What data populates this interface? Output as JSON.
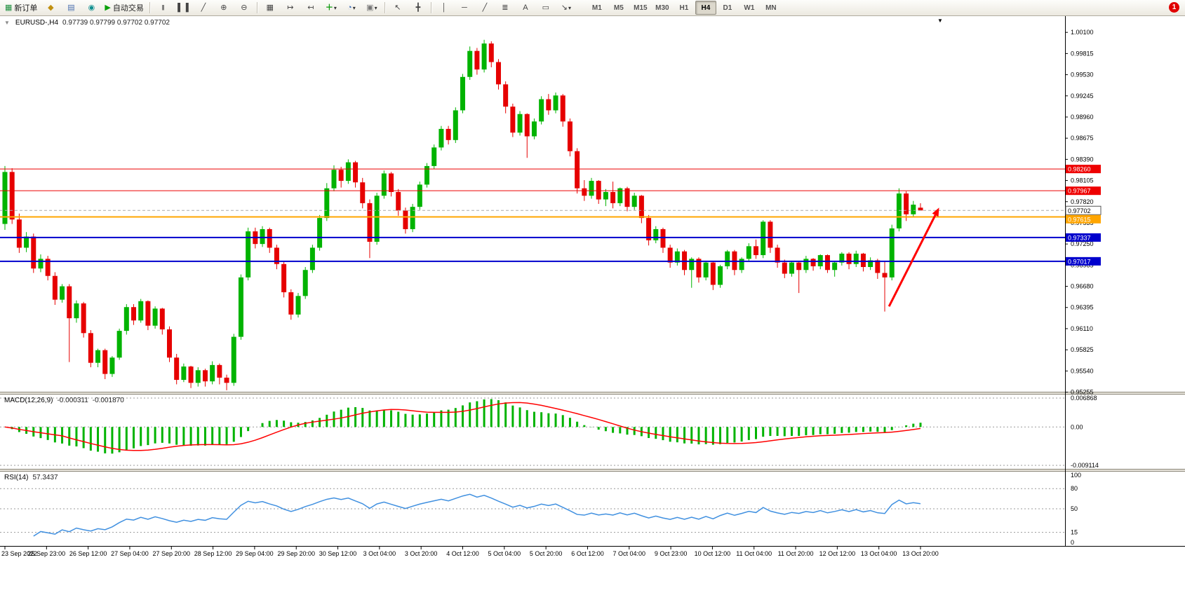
{
  "window": {
    "notification_count": "1"
  },
  "toolbar": {
    "new_order_label": "新订单",
    "autotrading_label": "自动交易",
    "timeframes": [
      "M1",
      "M5",
      "M15",
      "M30",
      "H1",
      "H4",
      "D1",
      "W1",
      "MN"
    ],
    "active_timeframe": "H4",
    "glyphs": {
      "new_order": "▦",
      "mql_editor": "◆",
      "terminal": "▤",
      "strategy_tester": "◉",
      "autotrading": "▶",
      "bars_chart": "|||",
      "candle_chart": "▌▐",
      "line_chart": "╱",
      "zoom_in": "⊕",
      "zoom_out": "⊖",
      "tile_windows": "▦",
      "auto_scroll": "↦",
      "chart_shift": "↤",
      "indicators": "＋",
      "periods": "◔",
      "templates": "▣",
      "cursor": "↖",
      "crosshair": "╋",
      "vertical_line": "│",
      "horizontal_line": "─",
      "trend_line": "╱",
      "fibonacci": "≣",
      "text_tool": "A",
      "label_tool": "▭",
      "arrows_tool": "↘",
      "dropdown": "▾",
      "collapse": "▼",
      "chart_marker": "▼"
    }
  },
  "chart": {
    "title": "EURUSD-,H4",
    "ohlc_text": "0.97739 0.97799 0.97702 0.97702"
  },
  "macd": {
    "name": "MACD(12,26,9)",
    "value": "-0.000311",
    "signal": "-0.001870",
    "axis_labels": [
      "0.006868",
      "0.00",
      "-0.009114"
    ],
    "axis_values": [
      0.006868,
      0,
      -0.009114
    ],
    "fast": 12,
    "slow": 26,
    "smooth": 9,
    "histogram_color": "#00B300",
    "signal_color": "#FF0000"
  },
  "rsi": {
    "name": "RSI(14)",
    "value": "57.3437",
    "period": 14,
    "levels": [
      80,
      50,
      15
    ],
    "axis_labels": [
      "100",
      "80",
      "50",
      "15",
      "0"
    ],
    "axis_values": [
      100,
      80,
      50,
      15,
      0
    ],
    "line_color": "#4090E0"
  },
  "chart_data": {
    "type": "candlestick",
    "symbol": "EURUSD-",
    "timeframe": "H4",
    "current_bar": {
      "open": 0.97739,
      "high": 0.97799,
      "low": 0.97702,
      "close": 0.97702
    },
    "ylim": [
      0.9526,
      1.003
    ],
    "up_color": "#00B300",
    "down_color": "#E60000",
    "price_ticks": [
      "1.00100",
      "0.99815",
      "0.99530",
      "0.99245",
      "0.98960",
      "0.98675",
      "0.98390",
      "0.98105",
      "0.97820",
      "0.97535",
      "0.97250",
      "0.96965",
      "0.96680",
      "0.96395",
      "0.96110",
      "0.95825",
      "0.95540",
      "0.95255"
    ],
    "time_labels": [
      "23 Sep 2022",
      "25 Sep 23:00",
      "26 Sep 12:00",
      "27 Sep 04:00",
      "27 Sep 20:00",
      "28 Sep 12:00",
      "29 Sep 04:00",
      "29 Sep 20:00",
      "30 Sep 12:00",
      "3 Oct 04:00",
      "3 Oct 20:00",
      "4 Oct 12:00",
      "5 Oct 04:00",
      "5 Oct 20:00",
      "6 Oct 12:00",
      "7 Oct 04:00",
      "9 Oct 23:00",
      "10 Oct 12:00",
      "11 Oct 04:00",
      "11 Oct 20:00",
      "12 Oct 12:00",
      "13 Oct 04:00",
      "13 Oct 20:00"
    ],
    "horizontal_lines": [
      {
        "name": "resistance-line-upper",
        "value": 0.9826,
        "label": "0.98260",
        "color": "#EE0000",
        "width": 1
      },
      {
        "name": "resistance-line-lower",
        "value": 0.97967,
        "label": "0.97967",
        "color": "#EE0000",
        "width": 1
      },
      {
        "name": "pivot-line-orange",
        "value": 0.97615,
        "label": "0.97615",
        "color": "#FFA500",
        "width": 2
      },
      {
        "name": "support-line-upper",
        "value": 0.97337,
        "label": "0.97337",
        "color": "#0000CD",
        "width": 2
      },
      {
        "name": "support-line-lower",
        "value": 0.97017,
        "label": "0.97017",
        "color": "#0000CD",
        "width": 2
      }
    ],
    "current_price": {
      "value": 0.97702,
      "label": "0.97702"
    },
    "arrow": {
      "start_index": 123.6,
      "start_price": 0.9641,
      "end_index": 130.6,
      "end_price": 0.9774,
      "color": "#FF0000"
    },
    "candles": [
      [
        0.9752,
        0.983,
        0.9744,
        0.9822
      ],
      [
        0.9822,
        0.9827,
        0.9752,
        0.9758
      ],
      [
        0.9758,
        0.9766,
        0.9713,
        0.972
      ],
      [
        0.972,
        0.9741,
        0.9714,
        0.9735
      ],
      [
        0.9735,
        0.9739,
        0.9686,
        0.9692
      ],
      [
        0.9692,
        0.9711,
        0.9687,
        0.9705
      ],
      [
        0.9705,
        0.9709,
        0.9676,
        0.9682
      ],
      [
        0.9682,
        0.9687,
        0.9643,
        0.965
      ],
      [
        0.965,
        0.9671,
        0.9646,
        0.9668
      ],
      [
        0.9668,
        0.9671,
        0.9566,
        0.9625
      ],
      [
        0.9625,
        0.9649,
        0.9619,
        0.9645
      ],
      [
        0.9645,
        0.9647,
        0.9599,
        0.9605
      ],
      [
        0.9605,
        0.9609,
        0.9559,
        0.9565
      ],
      [
        0.9565,
        0.9584,
        0.9559,
        0.9582
      ],
      [
        0.9582,
        0.9584,
        0.9543,
        0.955
      ],
      [
        0.955,
        0.9574,
        0.9546,
        0.9572
      ],
      [
        0.9572,
        0.9611,
        0.9569,
        0.9608
      ],
      [
        0.9608,
        0.9644,
        0.9603,
        0.964
      ],
      [
        0.964,
        0.9644,
        0.9616,
        0.9622
      ],
      [
        0.9622,
        0.9651,
        0.9619,
        0.9648
      ],
      [
        0.9648,
        0.9649,
        0.9609,
        0.9615
      ],
      [
        0.9615,
        0.9641,
        0.9611,
        0.9638
      ],
      [
        0.9638,
        0.9639,
        0.9603,
        0.961
      ],
      [
        0.961,
        0.9614,
        0.9566,
        0.9572
      ],
      [
        0.9572,
        0.9577,
        0.9536,
        0.9542
      ],
      [
        0.9542,
        0.9564,
        0.9539,
        0.956
      ],
      [
        0.956,
        0.9561,
        0.9531,
        0.9538
      ],
      [
        0.9538,
        0.9559,
        0.9533,
        0.9555
      ],
      [
        0.9555,
        0.9557,
        0.9533,
        0.954
      ],
      [
        0.954,
        0.9567,
        0.9536,
        0.9562
      ],
      [
        0.9562,
        0.9564,
        0.9536,
        0.9545
      ],
      [
        0.9545,
        0.9549,
        0.9528,
        0.9538
      ],
      [
        0.9538,
        0.9604,
        0.9534,
        0.96
      ],
      [
        0.96,
        0.9684,
        0.9596,
        0.968
      ],
      [
        0.968,
        0.9747,
        0.9676,
        0.9742
      ],
      [
        0.9742,
        0.9747,
        0.9719,
        0.9725
      ],
      [
        0.9725,
        0.9749,
        0.9721,
        0.9745
      ],
      [
        0.9745,
        0.9747,
        0.9713,
        0.972
      ],
      [
        0.972,
        0.9724,
        0.9691,
        0.9698
      ],
      [
        0.9698,
        0.9701,
        0.9653,
        0.966
      ],
      [
        0.966,
        0.9664,
        0.9623,
        0.963
      ],
      [
        0.963,
        0.9659,
        0.9626,
        0.9655
      ],
      [
        0.9655,
        0.9694,
        0.9651,
        0.969
      ],
      [
        0.969,
        0.9724,
        0.9686,
        0.972
      ],
      [
        0.972,
        0.9764,
        0.9716,
        0.976
      ],
      [
        0.976,
        0.9807,
        0.9756,
        0.98
      ],
      [
        0.98,
        0.9831,
        0.9796,
        0.9825
      ],
      [
        0.9825,
        0.9829,
        0.9801,
        0.981
      ],
      [
        0.981,
        0.9839,
        0.9806,
        0.9835
      ],
      [
        0.9835,
        0.9837,
        0.9801,
        0.9808
      ],
      [
        0.9808,
        0.9814,
        0.9773,
        0.978
      ],
      [
        0.978,
        0.9785,
        0.9706,
        0.9728
      ],
      [
        0.9728,
        0.9794,
        0.9724,
        0.979
      ],
      [
        0.979,
        0.9824,
        0.9786,
        0.982
      ],
      [
        0.982,
        0.9822,
        0.9789,
        0.9795
      ],
      [
        0.9795,
        0.9799,
        0.9763,
        0.977
      ],
      [
        0.977,
        0.9774,
        0.9739,
        0.9745
      ],
      [
        0.9745,
        0.9779,
        0.9741,
        0.9775
      ],
      [
        0.9775,
        0.9809,
        0.9771,
        0.9805
      ],
      [
        0.9805,
        0.9834,
        0.9801,
        0.983
      ],
      [
        0.983,
        0.9859,
        0.9826,
        0.9855
      ],
      [
        0.9855,
        0.9884,
        0.9851,
        0.988
      ],
      [
        0.988,
        0.9884,
        0.9859,
        0.9865
      ],
      [
        0.9865,
        0.9909,
        0.9861,
        0.9905
      ],
      [
        0.9905,
        0.9954,
        0.9901,
        0.995
      ],
      [
        0.995,
        0.9991,
        0.9946,
        0.9985
      ],
      [
        0.9985,
        0.9989,
        0.9953,
        0.996
      ],
      [
        0.996,
        1.0,
        0.9956,
        0.9995
      ],
      [
        0.9995,
        0.9998,
        0.9963,
        0.997
      ],
      [
        0.997,
        0.9974,
        0.9933,
        0.994
      ],
      [
        0.994,
        0.9944,
        0.9901,
        0.991
      ],
      [
        0.991,
        0.9914,
        0.9869,
        0.9875
      ],
      [
        0.9875,
        0.9904,
        0.9871,
        0.99
      ],
      [
        0.99,
        0.9901,
        0.9841,
        0.987
      ],
      [
        0.987,
        0.9894,
        0.9866,
        0.989
      ],
      [
        0.989,
        0.9924,
        0.9886,
        0.992
      ],
      [
        0.992,
        0.9927,
        0.9899,
        0.9905
      ],
      [
        0.9905,
        0.9929,
        0.9901,
        0.9925
      ],
      [
        0.9925,
        0.9927,
        0.9883,
        0.989
      ],
      [
        0.989,
        0.9894,
        0.9843,
        0.985
      ],
      [
        0.985,
        0.9854,
        0.9793,
        0.98
      ],
      [
        0.98,
        0.9811,
        0.9783,
        0.979
      ],
      [
        0.979,
        0.9814,
        0.9786,
        0.981
      ],
      [
        0.981,
        0.9811,
        0.9779,
        0.9785
      ],
      [
        0.9785,
        0.9799,
        0.9776,
        0.9795
      ],
      [
        0.9795,
        0.9809,
        0.9773,
        0.978
      ],
      [
        0.978,
        0.9801,
        0.9776,
        0.98
      ],
      [
        0.98,
        0.9802,
        0.9769,
        0.9775
      ],
      [
        0.9775,
        0.9794,
        0.9771,
        0.979
      ],
      [
        0.979,
        0.9791,
        0.9753,
        0.976
      ],
      [
        0.976,
        0.9764,
        0.9723,
        0.973
      ],
      [
        0.973,
        0.9749,
        0.9726,
        0.9745
      ],
      [
        0.9745,
        0.9747,
        0.9713,
        0.972
      ],
      [
        0.972,
        0.9724,
        0.9693,
        0.97
      ],
      [
        0.97,
        0.9719,
        0.9696,
        0.9715
      ],
      [
        0.9715,
        0.9717,
        0.9683,
        0.969
      ],
      [
        0.969,
        0.9707,
        0.9666,
        0.9705
      ],
      [
        0.9705,
        0.9707,
        0.9673,
        0.968
      ],
      [
        0.968,
        0.9701,
        0.9676,
        0.97
      ],
      [
        0.97,
        0.9701,
        0.9663,
        0.967
      ],
      [
        0.967,
        0.9697,
        0.9666,
        0.9695
      ],
      [
        0.9695,
        0.9717,
        0.9691,
        0.9715
      ],
      [
        0.9715,
        0.9717,
        0.9683,
        0.969
      ],
      [
        0.969,
        0.9707,
        0.9686,
        0.9705
      ],
      [
        0.9705,
        0.9726,
        0.9701,
        0.9722
      ],
      [
        0.9722,
        0.9731,
        0.9705,
        0.971
      ],
      [
        0.971,
        0.9757,
        0.9706,
        0.9755
      ],
      [
        0.9755,
        0.9757,
        0.9713,
        0.972
      ],
      [
        0.972,
        0.9724,
        0.9693,
        0.97
      ],
      [
        0.97,
        0.9704,
        0.9679,
        0.9685
      ],
      [
        0.9685,
        0.9701,
        0.9681,
        0.97
      ],
      [
        0.97,
        0.9702,
        0.9659,
        0.969
      ],
      [
        0.969,
        0.9709,
        0.9686,
        0.9705
      ],
      [
        0.9705,
        0.9706,
        0.9689,
        0.9695
      ],
      [
        0.9695,
        0.9711,
        0.9691,
        0.971
      ],
      [
        0.971,
        0.9711,
        0.9686,
        0.969
      ],
      [
        0.969,
        0.9701,
        0.9681,
        0.97
      ],
      [
        0.97,
        0.9714,
        0.9696,
        0.9712
      ],
      [
        0.9712,
        0.9714,
        0.9691,
        0.9698
      ],
      [
        0.9698,
        0.9716,
        0.9694,
        0.9712
      ],
      [
        0.9712,
        0.9713,
        0.9688,
        0.9694
      ],
      [
        0.9694,
        0.9707,
        0.969,
        0.9703
      ],
      [
        0.9703,
        0.9705,
        0.9678,
        0.9686
      ],
      [
        0.9686,
        0.9702,
        0.9634,
        0.968
      ],
      [
        0.968,
        0.9751,
        0.9676,
        0.9746
      ],
      [
        0.9746,
        0.98,
        0.9742,
        0.9793
      ],
      [
        0.9793,
        0.9796,
        0.9756,
        0.9765
      ],
      [
        0.9765,
        0.9783,
        0.9761,
        0.9778
      ],
      [
        0.97739,
        0.97799,
        0.97702,
        0.97702
      ]
    ]
  }
}
